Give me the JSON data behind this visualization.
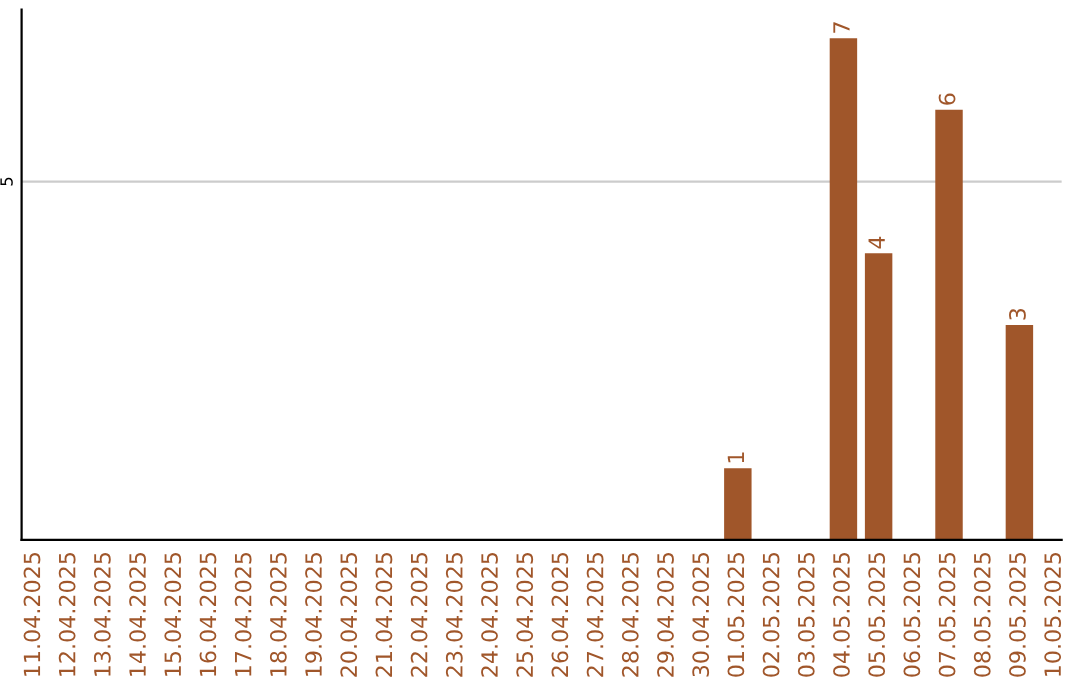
{
  "chart_data": {
    "type": "bar",
    "categories": [
      "11.04.2025",
      "12.04.2025",
      "13.04.2025",
      "14.04.2025",
      "15.04.2025",
      "16.04.2025",
      "17.04.2025",
      "18.04.2025",
      "19.04.2025",
      "20.04.2025",
      "21.04.2025",
      "22.04.2025",
      "23.04.2025",
      "24.04.2025",
      "25.04.2025",
      "26.04.2025",
      "27.04.2025",
      "28.04.2025",
      "29.04.2025",
      "30.04.2025",
      "01.05.2025",
      "02.05.2025",
      "03.05.2025",
      "04.05.2025",
      "05.05.2025",
      "06.05.2025",
      "07.05.2025",
      "08.05.2025",
      "09.05.2025",
      "10.05.2025"
    ],
    "values": [
      null,
      null,
      null,
      null,
      null,
      null,
      null,
      null,
      null,
      null,
      null,
      null,
      null,
      null,
      null,
      null,
      null,
      null,
      null,
      null,
      1,
      null,
      null,
      7,
      4,
      null,
      6,
      null,
      3,
      null
    ],
    "color": "#a0562a",
    "ylim": [
      0,
      7.4
    ],
    "yticks": [
      5
    ],
    "grid": "y",
    "data_labels": true,
    "legend": false
  }
}
